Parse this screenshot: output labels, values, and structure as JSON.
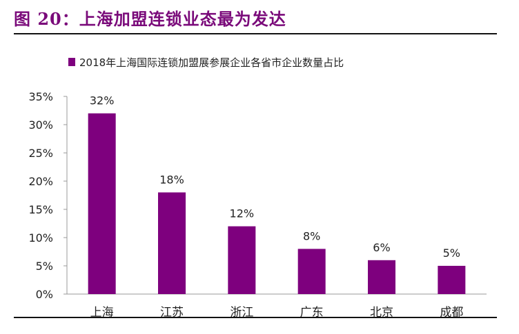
{
  "figure": {
    "title": "图 20：上海加盟连锁业态最为发达"
  },
  "chart_data": {
    "type": "bar",
    "title": "",
    "legend": {
      "label": "2018年上海国际连锁加盟展参展企业各省市企业数量占比",
      "placement": "top"
    },
    "categories": [
      "上海",
      "江苏",
      "浙江",
      "广东",
      "北京",
      "成都"
    ],
    "series": [
      {
        "name": "2018年上海国际连锁加盟展参展企业各省市企业数量占比",
        "values": [
          32,
          18,
          12,
          8,
          6,
          5
        ],
        "labels": [
          "32%",
          "18%",
          "12%",
          "8%",
          "6%",
          "5%"
        ]
      }
    ],
    "ylim": [
      0,
      35
    ],
    "yticks": [
      0,
      5,
      10,
      15,
      20,
      25,
      30,
      35
    ],
    "ytick_labels": [
      "0%",
      "5%",
      "10%",
      "15%",
      "20%",
      "25%",
      "30%",
      "35%"
    ],
    "xlabel": "",
    "ylabel": "",
    "grid": false,
    "bar_color": "#7e007e"
  }
}
